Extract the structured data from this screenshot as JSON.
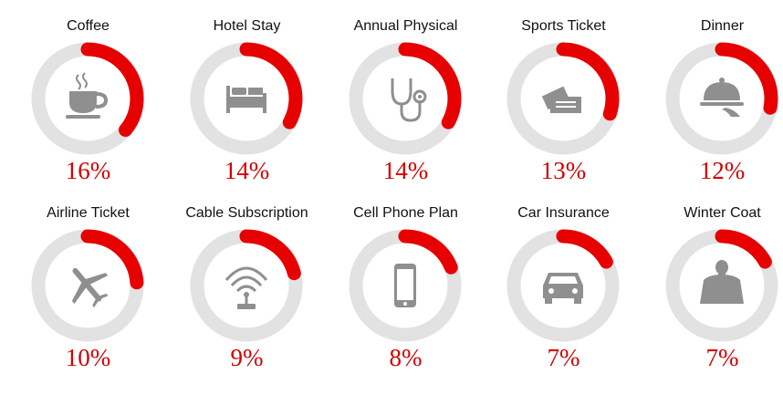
{
  "chart_data": {
    "type": "donut-grid",
    "track_color": "#e2e2e2",
    "arc_color": "#e60000",
    "value_color": "#d20000",
    "icon_color": "#8f8f8f",
    "items": [
      {
        "label": "Coffee",
        "value_label": "16%",
        "arc_fraction": 0.36,
        "icon": "coffee-cup-icon"
      },
      {
        "label": "Hotel Stay",
        "value_label": "14%",
        "arc_fraction": 0.33,
        "icon": "bed-icon"
      },
      {
        "label": "Annual Physical",
        "value_label": "14%",
        "arc_fraction": 0.33,
        "icon": "stethoscope-icon"
      },
      {
        "label": "Sports Ticket",
        "value_label": "13%",
        "arc_fraction": 0.3,
        "icon": "ticket-icon"
      },
      {
        "label": "Dinner",
        "value_label": "12%",
        "arc_fraction": 0.28,
        "icon": "serving-cloche-icon"
      },
      {
        "label": "Airline Ticket",
        "value_label": "10%",
        "arc_fraction": 0.24,
        "icon": "airplane-icon"
      },
      {
        "label": "Cable Subscription",
        "value_label": "9%",
        "arc_fraction": 0.21,
        "icon": "antenna-signal-icon"
      },
      {
        "label": "Cell Phone Plan",
        "value_label": "8%",
        "arc_fraction": 0.19,
        "icon": "cell-phone-icon"
      },
      {
        "label": "Car Insurance",
        "value_label": "7%",
        "arc_fraction": 0.17,
        "icon": "car-icon"
      },
      {
        "label": "Winter Coat",
        "value_label": "7%",
        "arc_fraction": 0.17,
        "icon": "coat-person-icon"
      }
    ]
  }
}
